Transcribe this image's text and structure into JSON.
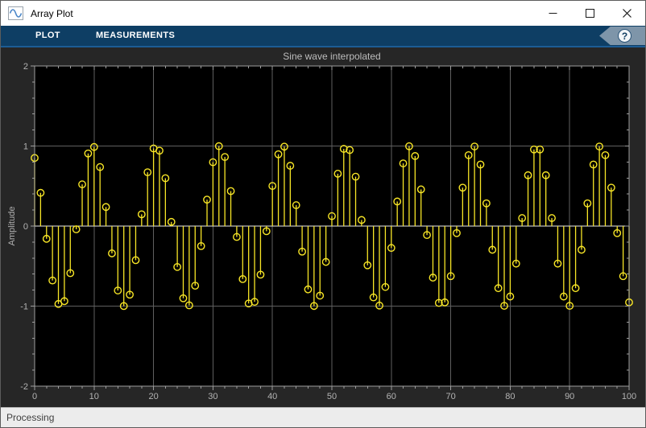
{
  "window": {
    "title": "Array Plot",
    "controls": {
      "minimize_label": "minimize",
      "maximize_label": "maximize",
      "close_label": "close"
    }
  },
  "toolbar": {
    "tabs": [
      {
        "label": "PLOT"
      },
      {
        "label": "MEASUREMENTS"
      }
    ],
    "help_label": "?"
  },
  "status": {
    "text": "Processing"
  },
  "chart_data": {
    "type": "stem",
    "title": "Sine wave interpolated",
    "xlabel": "",
    "ylabel": "Amplitude",
    "xlim": [
      0,
      100
    ],
    "ylim": [
      -2,
      2
    ],
    "x_ticks": [
      0,
      10,
      20,
      30,
      40,
      50,
      60,
      70,
      80,
      90,
      100
    ],
    "y_ticks": [
      -2,
      -1,
      0,
      1,
      2
    ],
    "x_minor_step": 2,
    "y_minor_step": 0.2,
    "grid": true,
    "legend": "none",
    "x_start": 0,
    "x_increment": 1,
    "values": [
      0.851,
      0.415,
      -0.159,
      -0.68,
      -0.973,
      -0.938,
      -0.588,
      -0.04,
      0.521,
      0.907,
      0.988,
      0.737,
      0.238,
      -0.341,
      -0.805,
      -0.999,
      -0.857,
      -0.426,
      0.147,
      0.672,
      0.97,
      0.942,
      0.598,
      0.052,
      -0.511,
      -0.902,
      -0.99,
      -0.745,
      -0.25,
      0.33,
      0.798,
      0.998,
      0.863,
      0.437,
      -0.136,
      -0.662,
      -0.967,
      -0.946,
      -0.607,
      -0.064,
      0.501,
      0.897,
      0.992,
      0.753,
      0.261,
      -0.319,
      -0.791,
      -0.998,
      -0.869,
      -0.448,
      0.124,
      0.654,
      0.964,
      0.95,
      0.617,
      0.076,
      -0.49,
      -0.891,
      -0.993,
      -0.761,
      -0.273,
      0.307,
      0.783,
      0.997,
      0.875,
      0.458,
      -0.112,
      -0.644,
      -0.96,
      -0.953,
      -0.626,
      -0.088,
      0.48,
      0.886,
      0.994,
      0.769,
      0.284,
      -0.296,
      -0.776,
      -0.996,
      -0.88,
      -0.469,
      0.1,
      0.635,
      0.957,
      0.957,
      0.635,
      0.1,
      -0.469,
      -0.88,
      -0.996,
      -0.776,
      -0.296,
      0.284,
      0.769,
      0.994,
      0.886,
      0.48,
      -0.088,
      -0.626,
      -0.953
    ],
    "colors": {
      "stem": "#f8e626",
      "axes_background": "#000000",
      "figure_background": "#262626",
      "grid": "#5f5f5f",
      "baseline": "#ebebeb",
      "axis_box": "#9e9e9e",
      "tick": "#9e9e9e",
      "tick_label": "#b3b3b3",
      "title_text": "#bdbdbd"
    }
  }
}
